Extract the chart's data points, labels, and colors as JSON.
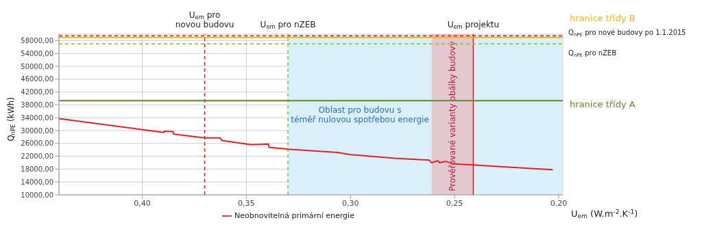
{
  "chart_data": {
    "type": "line",
    "xlabel": "U$_{em}$ (W.m$^{-2}$.K$^{-1}$)",
    "ylabel": "Q$_{nPE}$ (kWh)",
    "x": [
      0.44,
      0.3896,
      0.3893,
      0.3852,
      0.3849,
      0.37,
      0.3625,
      0.3618,
      0.3475,
      0.3394,
      0.3391,
      0.33,
      0.3063,
      0.3,
      0.2975,
      0.2789,
      0.2621,
      0.2612,
      0.258,
      0.2571,
      0.2543,
      0.2505,
      0.2473,
      0.241,
      0.2284,
      0.2028
    ],
    "series": [
      {
        "name": "Neobnovitelná primární energie",
        "color": "#e81e1e",
        "values": [
          33700,
          29400,
          29800,
          29700,
          28900,
          27700,
          27700,
          26900,
          25600,
          25800,
          24800,
          24200,
          23200,
          22500,
          22400,
          21400,
          20800,
          20000,
          20600,
          20000,
          20400,
          19700,
          19500,
          19300,
          18800,
          17800
        ]
      }
    ],
    "xlim": [
      0.44,
      0.198
    ],
    "xticks": [
      {
        "value": 0.4,
        "label": "0,40"
      },
      {
        "value": 0.35,
        "label": "0,35"
      },
      {
        "value": 0.3,
        "label": "0,30"
      },
      {
        "value": 0.25,
        "label": "0,25"
      },
      {
        "value": 0.2,
        "label": "0,20"
      }
    ],
    "ylim": [
      10000,
      60000
    ],
    "yticks": [
      {
        "value": 10000,
        "label": "10000,00"
      },
      {
        "value": 14000,
        "label": "14000,00"
      },
      {
        "value": 18000,
        "label": "18000,00"
      },
      {
        "value": 22000,
        "label": "22000,00"
      },
      {
        "value": 26000,
        "label": "26000,00"
      },
      {
        "value": 30000,
        "label": "30000,00"
      },
      {
        "value": 34000,
        "label": "34000,00"
      },
      {
        "value": 38000,
        "label": "38000,00"
      },
      {
        "value": 42000,
        "label": "42000,00"
      },
      {
        "value": 46000,
        "label": "46000,00"
      },
      {
        "value": 50000,
        "label": "50000,00"
      },
      {
        "value": 54000,
        "label": "54000,00"
      },
      {
        "value": 58000,
        "label": "58000,00"
      }
    ],
    "bands": [
      {
        "axis": "x",
        "from": 0.33,
        "to": 0.198,
        "label": "Oblast pro budovu s téměř nulovou spotřebou energie",
        "color": "#d9eff9"
      },
      {
        "axis": "x",
        "from": 0.261,
        "to": 0.241,
        "label": "Prověřované varianty obálky budovy",
        "color": "#e3c8d0"
      }
    ],
    "ref_lines": [
      {
        "axis": "x",
        "value": 0.37,
        "label": "U$_{em}$ pro\nnovou budovu",
        "color": "#e81e1e",
        "line_style": "dashed"
      },
      {
        "axis": "x",
        "value": 0.33,
        "label": "U$_{em}$ pro nZEB",
        "color": "#8cc63f",
        "line_style": "dashed"
      },
      {
        "axis": "x",
        "value": 0.241,
        "label": "U$_{em}$ projektu",
        "color": "#e02020",
        "line_style": "solid"
      },
      {
        "axis": "y",
        "value": 59000,
        "label": "hranice třídy B",
        "color": "#f5b800",
        "line_style": "solid"
      },
      {
        "axis": "y",
        "value": 59500,
        "label": "Q$_{nPE}$ pro nové budovy po 1.1.2015",
        "color": "#e81e1e",
        "line_style": "dashed"
      },
      {
        "axis": "y",
        "value": 57000,
        "label": "Q$_{nPE}$ pro nZEB",
        "color": "#8cc63f",
        "line_style": "dashed"
      },
      {
        "axis": "y",
        "value": 39300,
        "label": "hranice třídy A",
        "color": "#5a8a28",
        "line_style": "solid"
      }
    ],
    "grid": true,
    "legend": "bottom",
    "marker": "none",
    "line_style": "solid"
  }
}
